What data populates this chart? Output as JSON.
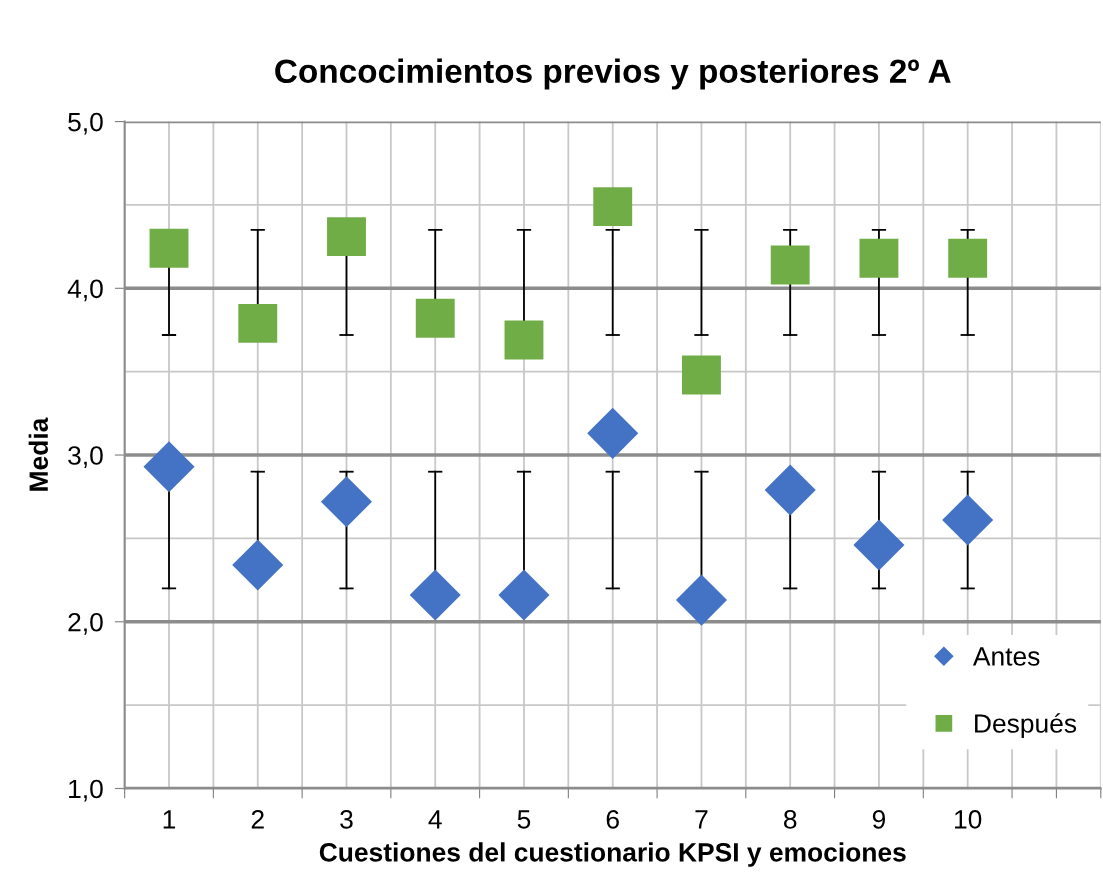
{
  "chart_data": {
    "type": "scatter",
    "title": "Concocimientos previos y posteriores 2º A",
    "xlabel": "Cuestiones del cuestionario KPSI y emociones",
    "ylabel": "Media",
    "x": [
      1,
      2,
      3,
      4,
      5,
      6,
      7,
      8,
      9,
      10
    ],
    "series": [
      {
        "name": "Antes",
        "color": "#4472c4",
        "marker": "diamond",
        "values": [
          2.93,
          2.34,
          2.72,
          2.16,
          2.16,
          3.13,
          2.13,
          2.79,
          2.46,
          2.61
        ],
        "errors": [
          [
            2.2,
            2.93
          ],
          [
            2.34,
            2.9
          ],
          [
            2.2,
            2.9
          ],
          [
            2.16,
            2.9
          ],
          [
            2.16,
            2.9
          ],
          [
            2.2,
            2.9
          ],
          [
            2.13,
            2.9
          ],
          [
            2.2,
            2.79
          ],
          [
            2.2,
            2.9
          ],
          [
            2.2,
            2.9
          ]
        ]
      },
      {
        "name": "Después",
        "color": "#70ad47",
        "marker": "square",
        "values": [
          4.24,
          3.79,
          4.31,
          3.82,
          3.69,
          4.49,
          3.48,
          4.14,
          4.18,
          4.18
        ],
        "errors": [
          [
            3.72,
            4.24
          ],
          [
            3.79,
            4.35
          ],
          [
            3.72,
            4.31
          ],
          [
            3.82,
            4.35
          ],
          [
            3.69,
            4.35
          ],
          [
            3.72,
            4.35
          ],
          [
            3.72,
            4.35
          ],
          [
            3.72,
            4.35
          ],
          [
            3.72,
            4.35
          ],
          [
            3.72,
            4.35
          ]
        ]
      }
    ],
    "xlim": [
      0.5,
      11.5
    ],
    "xticks": [
      {
        "value": 0.5,
        "label": null
      },
      {
        "value": 1,
        "label": "1"
      },
      {
        "value": 1.5,
        "label": null
      },
      {
        "value": 2,
        "label": "2"
      },
      {
        "value": 2.5,
        "label": null
      },
      {
        "value": 3,
        "label": "3"
      },
      {
        "value": 3.5,
        "label": null
      },
      {
        "value": 4,
        "label": "4"
      },
      {
        "value": 4.5,
        "label": null
      },
      {
        "value": 5,
        "label": "5"
      },
      {
        "value": 5.5,
        "label": null
      },
      {
        "value": 6,
        "label": "6"
      },
      {
        "value": 6.5,
        "label": null
      },
      {
        "value": 7,
        "label": "7"
      },
      {
        "value": 7.5,
        "label": null
      },
      {
        "value": 8,
        "label": "8"
      },
      {
        "value": 8.5,
        "label": null
      },
      {
        "value": 9,
        "label": "9"
      },
      {
        "value": 9.5,
        "label": null
      },
      {
        "value": 10,
        "label": "10"
      },
      {
        "value": 10.5,
        "label": null
      },
      {
        "value": 11,
        "label": null
      },
      {
        "value": 11.5,
        "label": null
      }
    ],
    "ylim": [
      1,
      5
    ],
    "yticks": [
      {
        "value": 1,
        "label": "1,0"
      },
      {
        "value": 1.5,
        "label": null
      },
      {
        "value": 2,
        "label": "2,0"
      },
      {
        "value": 2.5,
        "label": null
      },
      {
        "value": 3,
        "label": "3,0"
      },
      {
        "value": 3.5,
        "label": null
      },
      {
        "value": 4,
        "label": "4,0"
      },
      {
        "value": 4.5,
        "label": null
      },
      {
        "value": 5,
        "label": "5,0"
      }
    ],
    "grid": true,
    "legend": "bottom right"
  }
}
